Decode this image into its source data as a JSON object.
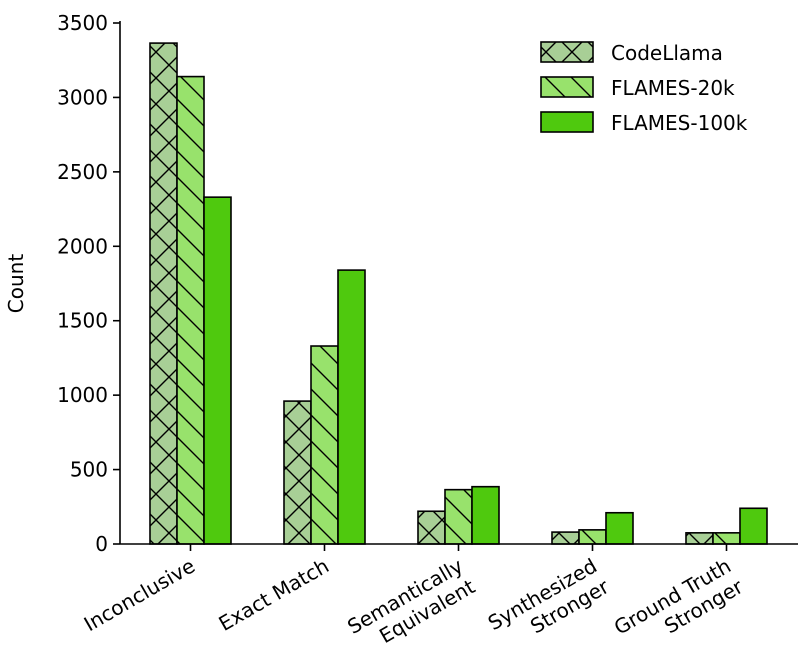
{
  "chart_data": {
    "type": "bar",
    "title": "",
    "xlabel": "",
    "ylabel": "Count",
    "ylim": [
      0,
      3500
    ],
    "yticks": [
      0,
      500,
      1000,
      1500,
      2000,
      2500,
      3000,
      3500
    ],
    "grid": false,
    "legend_position": "top-right",
    "categories": [
      [
        "Inconclusive"
      ],
      [
        "Exact Match"
      ],
      [
        "Semantically",
        "Equivalent"
      ],
      [
        "Synthesized",
        "Stronger"
      ],
      [
        "Ground Truth",
        "Stronger"
      ]
    ],
    "series": [
      {
        "name": "CodeLlama",
        "color": "#a8cf96",
        "hatch": "cross",
        "values": [
          3365,
          960,
          220,
          80,
          75
        ]
      },
      {
        "name": "FLAMES-20k",
        "color": "#98e26c",
        "hatch": "backslash",
        "values": [
          3140,
          1330,
          365,
          95,
          75
        ]
      },
      {
        "name": "FLAMES-100k",
        "color": "#4fc90e",
        "hatch": "none",
        "values": [
          2330,
          1840,
          385,
          210,
          240
        ]
      }
    ]
  }
}
